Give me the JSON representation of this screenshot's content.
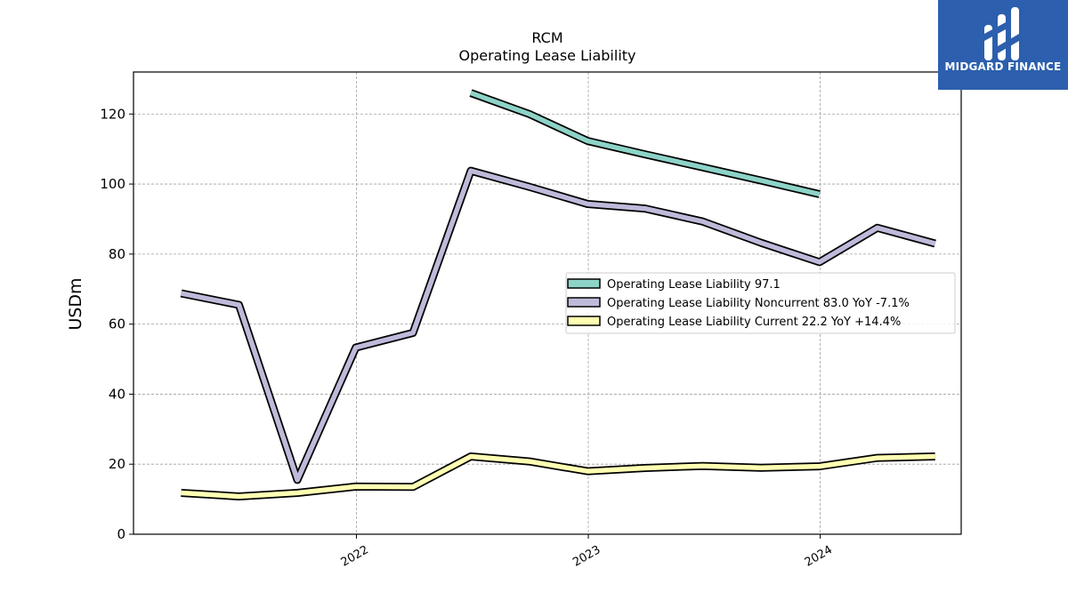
{
  "chart_data": {
    "type": "line",
    "title": "RCM",
    "subtitle": "Operating Lease Liability",
    "ylabel": "USDm",
    "xlabel": "",
    "ylim": [
      0,
      132
    ],
    "xlim": [
      "2021-01-15",
      "2024-08-10"
    ],
    "yticks": [
      0,
      20,
      40,
      60,
      80,
      100,
      120
    ],
    "xticks": [
      {
        "date": "2022-01-01",
        "label": "2022"
      },
      {
        "date": "2023-01-01",
        "label": "2023"
      },
      {
        "date": "2024-01-01",
        "label": "2024"
      }
    ],
    "grid": true,
    "legend_position": "center-right",
    "series": [
      {
        "name": "Operating Lease Liability",
        "legend_label": "Operating Lease Liability  97.1",
        "color": "#8dd3c7",
        "points": [
          [
            "2022-06-30",
            126.0
          ],
          [
            "2022-09-30",
            120.0
          ],
          [
            "2022-12-31",
            112.3
          ],
          [
            "2023-03-31",
            108.5
          ],
          [
            "2023-06-30",
            104.8
          ],
          [
            "2023-09-30",
            101.0
          ],
          [
            "2023-12-31",
            97.1
          ]
        ]
      },
      {
        "name": "Operating Lease Liability Noncurrent",
        "legend_label": "Operating Lease Liability Noncurrent  83.0 YoY -7.1%",
        "color": "#bebada",
        "points": [
          [
            "2021-03-31",
            68.8
          ],
          [
            "2021-06-30",
            65.5
          ],
          [
            "2021-09-30",
            15.5
          ],
          [
            "2021-12-31",
            53.3
          ],
          [
            "2022-03-31",
            57.5
          ],
          [
            "2022-06-30",
            103.8
          ],
          [
            "2022-09-30",
            99.2
          ],
          [
            "2022-12-31",
            94.3
          ],
          [
            "2023-03-31",
            93.0
          ],
          [
            "2023-06-30",
            89.3
          ],
          [
            "2023-09-30",
            83.2
          ],
          [
            "2023-12-31",
            77.7
          ],
          [
            "2024-03-31",
            87.5
          ],
          [
            "2024-06-30",
            83.0
          ]
        ]
      },
      {
        "name": "Operating Lease Liability Current",
        "legend_label": "Operating Lease Liability Current  22.2 YoY +14.4%",
        "color": "#ffffb3",
        "points": [
          [
            "2021-03-31",
            11.8
          ],
          [
            "2021-06-30",
            10.8
          ],
          [
            "2021-09-30",
            11.8
          ],
          [
            "2021-12-31",
            13.6
          ],
          [
            "2022-03-31",
            13.5
          ],
          [
            "2022-06-30",
            22.2
          ],
          [
            "2022-09-30",
            20.8
          ],
          [
            "2022-12-31",
            18.0
          ],
          [
            "2023-03-31",
            18.9
          ],
          [
            "2023-06-30",
            19.5
          ],
          [
            "2023-09-30",
            19.0
          ],
          [
            "2023-12-31",
            19.4
          ],
          [
            "2024-03-31",
            21.8
          ],
          [
            "2024-06-30",
            22.2
          ]
        ]
      }
    ]
  },
  "logo": {
    "text": "MIDGARD FINANCE",
    "background": "#2c5fad"
  }
}
